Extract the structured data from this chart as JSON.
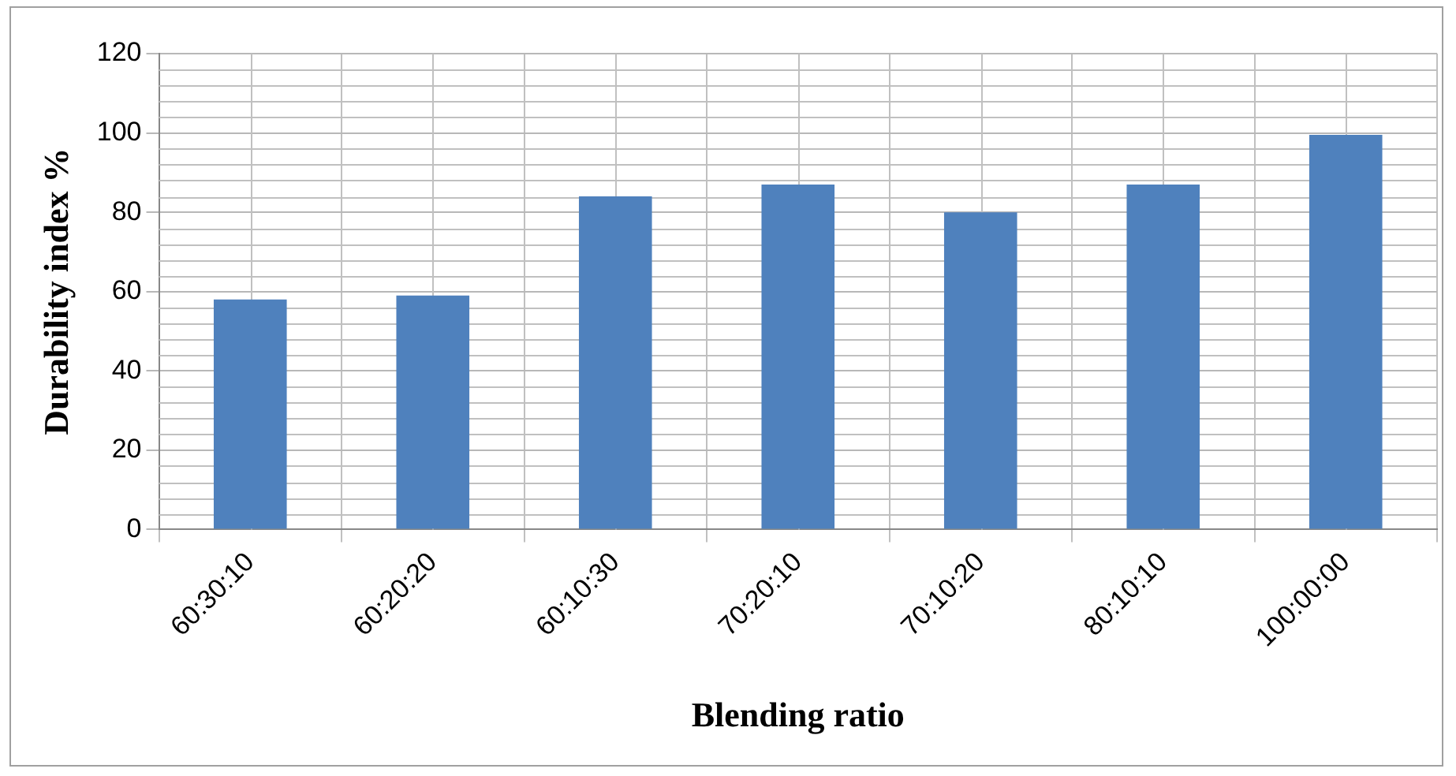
{
  "chart_data": {
    "type": "bar",
    "xlabel": "Blending ratio",
    "ylabel": "Durability index %",
    "categories": [
      "60:30:10",
      "60:20:20",
      "60:10:30",
      "70:20:10",
      "70:10:20",
      "80:10:10",
      "100:00:00"
    ],
    "values": [
      58,
      59,
      84,
      87,
      80,
      87,
      99.5
    ],
    "color": "#4f81bd",
    "ylim": [
      0,
      120
    ],
    "yticks": [
      0,
      20,
      40,
      60,
      80,
      100,
      120
    ],
    "grid": true,
    "legend": false
  }
}
